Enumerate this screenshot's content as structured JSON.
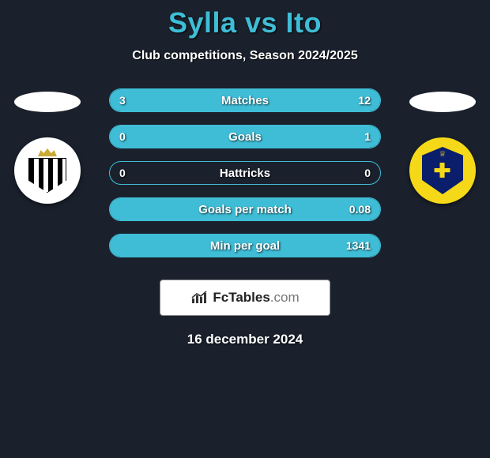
{
  "header": {
    "title": "Sylla vs Ito",
    "title_color": "#3fbdd6",
    "subtitle": "Club competitions, Season 2024/2025"
  },
  "players": {
    "left": {
      "name": "Sylla",
      "club_badge_bg": "#ffffff",
      "crest_type": "stripes",
      "stripe_colors": [
        "#000000",
        "#ffffff"
      ],
      "crown_color": "#c9a937"
    },
    "right": {
      "name": "Ito",
      "club_badge_bg": "#f5d817",
      "crest_type": "eagle-shield",
      "shield_color": "#0a1e6b",
      "eagle_color": "#f5d817"
    }
  },
  "stats": {
    "bar_border_color": "#3fbdd6",
    "bar_fill_color": "#3fbdd6",
    "bar_bg_color": "#1a212d",
    "rows": [
      {
        "label": "Matches",
        "left": "3",
        "right": "12",
        "left_pct": 20,
        "right_pct": 80
      },
      {
        "label": "Goals",
        "left": "0",
        "right": "1",
        "left_pct": 0,
        "right_pct": 100
      },
      {
        "label": "Hattricks",
        "left": "0",
        "right": "0",
        "left_pct": 0,
        "right_pct": 0
      },
      {
        "label": "Goals per match",
        "left": "",
        "right": "0.08",
        "left_pct": 0,
        "right_pct": 100
      },
      {
        "label": "Min per goal",
        "left": "",
        "right": "1341",
        "left_pct": 0,
        "right_pct": 100
      }
    ]
  },
  "branding": {
    "logo_text_dark": "FcTables",
    "logo_text_light": ".com",
    "logo_bg": "#ffffff"
  },
  "date": "16 december 2024",
  "background_color": "#1a212d"
}
